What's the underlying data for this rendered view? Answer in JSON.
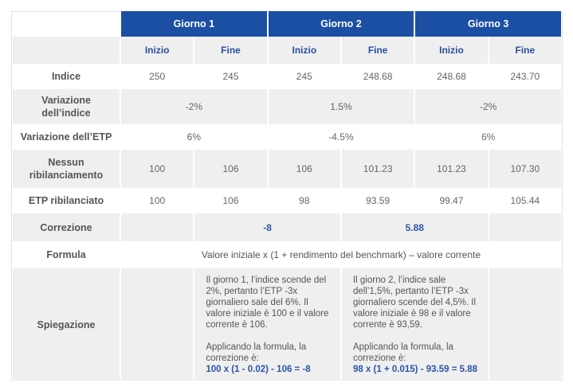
{
  "days": [
    "Giorno 1",
    "Giorno 2",
    "Giorno 3"
  ],
  "sub": {
    "start": "Inizio",
    "end": "Fine"
  },
  "rows": {
    "indice": {
      "label": "Indice",
      "values": [
        "250",
        "245",
        "245",
        "248.68",
        "248.68",
        "243.70"
      ]
    },
    "var_indice": {
      "label": "Variazione dell’indice",
      "values": [
        "-2%",
        "1.5%",
        "-2%"
      ]
    },
    "var_etp": {
      "label": "Variazione dell’ETP",
      "values": [
        "6%",
        "-4.5%",
        "6%"
      ]
    },
    "nessun": {
      "label": "Nessun ribilanciamento",
      "values": [
        "100",
        "106",
        "106",
        "101.23",
        "101.23",
        "107.30"
      ]
    },
    "ribil": {
      "label": "ETP ribilanciato",
      "values": [
        "100",
        "106",
        "98",
        "93.59",
        "99.47",
        "105.44"
      ]
    },
    "correzione": {
      "label": "Correzione",
      "values": [
        "-8",
        "5.88"
      ]
    },
    "formula": {
      "label": "Formula",
      "value": "Valore iniziale x (1 + rendimento del benchmark) – valore corrente"
    },
    "spiegazione": {
      "label": "Spiegazione",
      "items": [
        {
          "text": "Il giorno 1, l’indice scende del 2%, pertanto l’ETP -3x giornaliero sale del 6%. Il valore iniziale è 100 e il valore corrente è 106.",
          "apply": "Applicando la formula, la correzione è:",
          "formula": "100 x (1 - 0.02) - 106 = -8"
        },
        {
          "text": "Il giorno 2, l’indice sale dell’1,5%, pertanto l’ETP -3x giornaliero scende del 4,5%. Il valore iniziale è 98 e il valore corrente è 93,59.",
          "apply": "Applicando la formula, la correzione è:",
          "formula": "98 x (1 + 0.015) - 93.59 = 5.88"
        }
      ]
    }
  }
}
